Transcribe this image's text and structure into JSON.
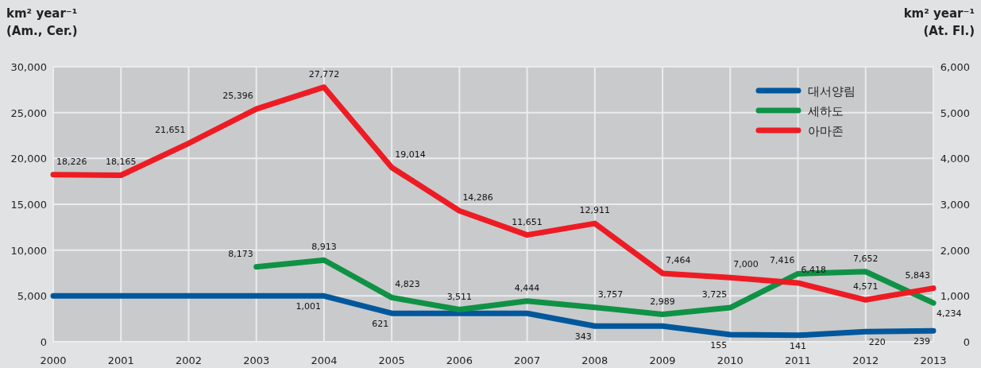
{
  "chart_data": {
    "type": "line",
    "ylabel": "km² year⁻¹\n(Am., Cer.)",
    "y2label": "km² year⁻¹\n(At. Fl.)",
    "x": [
      2000,
      2001,
      2002,
      2003,
      2004,
      2005,
      2006,
      2007,
      2008,
      2009,
      2010,
      2011,
      2012,
      2013
    ],
    "xlim": [
      2000,
      2013
    ],
    "xticks": [
      2000,
      2001,
      2002,
      2003,
      2004,
      2005,
      2006,
      2007,
      2008,
      2009,
      2010,
      2011,
      2012,
      2013
    ],
    "ylim": [
      0,
      30000
    ],
    "yticks": [
      {
        "value": 0,
        "label": "0"
      },
      {
        "value": 5000,
        "label": "5,000"
      },
      {
        "value": 10000,
        "label": "10,000"
      },
      {
        "value": 15000,
        "label": "15,000"
      },
      {
        "value": 20000,
        "label": "20,000"
      },
      {
        "value": 25000,
        "label": "25,000"
      },
      {
        "value": 30000,
        "label": "30,000"
      }
    ],
    "y2lim": [
      0,
      6000
    ],
    "y2ticks": [
      {
        "value": 0,
        "label": "0"
      },
      {
        "value": 1000,
        "label": "1,000"
      },
      {
        "value": 2000,
        "label": "2,000"
      },
      {
        "value": 3000,
        "label": "3,000"
      },
      {
        "value": 4000,
        "label": "4,000"
      },
      {
        "value": 5000,
        "label": "5,000"
      },
      {
        "value": 6000,
        "label": "6,000"
      }
    ],
    "grid": true,
    "legend": "top right",
    "marker": "none",
    "line_style": "solid",
    "series": [
      {
        "name": "대서양림",
        "color": "#00579c",
        "axis": "y2",
        "values": [
          1001,
          1001,
          1001,
          1001,
          1001,
          621,
          621,
          621,
          343,
          343,
          155,
          141,
          220,
          239
        ],
        "value_labels": [
          null,
          null,
          null,
          null,
          "1,001",
          "621",
          null,
          null,
          "343",
          null,
          "155",
          "141",
          "220",
          "239"
        ]
      },
      {
        "name": "세하도",
        "color": "#0f9245",
        "values": [
          null,
          null,
          null,
          8173,
          8913,
          4823,
          3511,
          4444,
          3757,
          2989,
          3725,
          7416,
          7652,
          4234
        ],
        "value_labels": [
          null,
          null,
          null,
          "8,173",
          "8,913",
          "4,823",
          "3,511",
          "4,444",
          "3,757",
          "2,989",
          "3,725",
          "7,416",
          "7,652",
          "4,234"
        ]
      },
      {
        "name": "아마존",
        "color": "#ed1c24",
        "values": [
          18226,
          18165,
          21651,
          25396,
          27772,
          19014,
          14286,
          11651,
          12911,
          7464,
          7000,
          6418,
          4571,
          5843
        ],
        "value_labels": [
          "18,226",
          "18,165",
          "21,651",
          "25,396",
          "27,772",
          "19,014",
          "14,286",
          "11,651",
          "12,911",
          "7,464",
          "7,000",
          "6,418",
          "4,571",
          "5,843"
        ]
      }
    ]
  }
}
